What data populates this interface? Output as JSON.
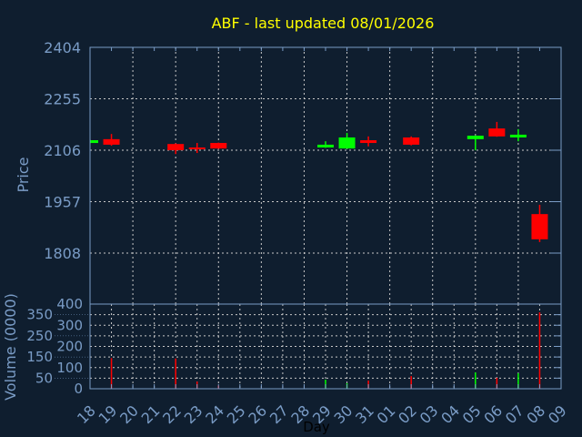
{
  "chart_data": {
    "type": "candlestick",
    "title": "ABF - last updated 08/01/2026",
    "xlabel": "Day",
    "ylabel": "Price",
    "volume_label": "Volume (0000)",
    "x_ticks": [
      "18",
      "19",
      "20",
      "21",
      "22",
      "23",
      "24",
      "25",
      "26",
      "27",
      "28",
      "29",
      "30",
      "31",
      "01",
      "02",
      "03",
      "04",
      "05",
      "06",
      "07",
      "08",
      "09"
    ],
    "y_ticks": [
      2404,
      2255,
      2106,
      1957,
      1808
    ],
    "ylim": [
      1808,
      2404
    ],
    "volume_ticks": [
      0,
      50,
      100,
      150,
      200,
      250,
      300,
      350,
      400
    ],
    "volume_ylim": [
      0,
      400
    ],
    "grid": true,
    "colors": {
      "up": "#00ff00",
      "down": "#ff0000",
      "background": "#0f1e2f",
      "axis": "#7a9cc6",
      "title": "#ffff00"
    },
    "candles": [
      {
        "day": "18",
        "open": 2127,
        "high": 2136,
        "low": 2126,
        "close": 2135,
        "volume": 0
      },
      {
        "day": "19",
        "open": 2138,
        "high": 2153,
        "low": 2119,
        "close": 2122,
        "volume": 145
      },
      {
        "day": "22",
        "open": 2124,
        "high": 2126,
        "low": 2095,
        "close": 2106,
        "volume": 143
      },
      {
        "day": "23",
        "open": 2114,
        "high": 2127,
        "low": 2098,
        "close": 2111,
        "volume": 34
      },
      {
        "day": "24",
        "open": 2127,
        "high": 2128,
        "low": 2110,
        "close": 2111,
        "volume": 15
      },
      {
        "day": "29",
        "open": 2114,
        "high": 2132,
        "low": 2113,
        "close": 2122,
        "volume": 43
      },
      {
        "day": "30",
        "open": 2111,
        "high": 2156,
        "low": 2110,
        "close": 2143,
        "volume": 26
      },
      {
        "day": "31",
        "open": 2135,
        "high": 2146,
        "low": 2117,
        "close": 2127,
        "volume": 39
      },
      {
        "day": "02",
        "open": 2143,
        "high": 2146,
        "low": 2120,
        "close": 2122,
        "volume": 60
      },
      {
        "day": "05",
        "open": 2138,
        "high": 2149,
        "low": 2106,
        "close": 2148,
        "volume": 77
      },
      {
        "day": "06",
        "open": 2169,
        "high": 2188,
        "low": 2145,
        "close": 2146,
        "volume": 52
      },
      {
        "day": "07",
        "open": 2143,
        "high": 2167,
        "low": 2132,
        "close": 2151,
        "volume": 73
      },
      {
        "day": "08",
        "open": 1921,
        "high": 1948,
        "low": 1840,
        "close": 1848,
        "volume": 361
      }
    ]
  }
}
